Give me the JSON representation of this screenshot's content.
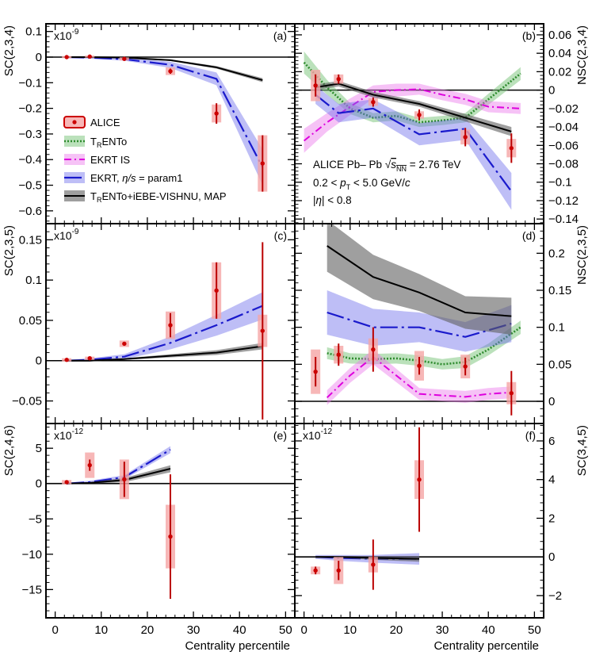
{
  "figure": {
    "xlabel": "Centrality percentile",
    "x_ticks": [
      0,
      10,
      20,
      30,
      40,
      50
    ],
    "xlim": [
      -2,
      52
    ],
    "annotation": {
      "line1_prefix": "ALICE Pb– Pb ",
      "line1_sqrt": "√",
      "line1_s": "s",
      "line1_sub": "NN",
      "line1_suffix": " = 2.76 TeV",
      "line2_a": "0.2 < ",
      "line2_p": "p",
      "line2_T": "T",
      "line2_b": " < 5.0 GeV/",
      "line2_c": "c",
      "line3_a": "|",
      "line3_eta": "η",
      "line3_b": "| < 0.8"
    },
    "legend": [
      {
        "key": "alice",
        "label": "ALICE",
        "color": "#cc0000"
      },
      {
        "key": "trento",
        "label_pre": "T",
        "label_sub": "R",
        "label_post": "ENTo",
        "color": "#2e8b2e"
      },
      {
        "key": "ekrt_is",
        "label": "EKRT IS",
        "color": "#dd00dd"
      },
      {
        "key": "ekrt",
        "label_pre": "EKRT, ",
        "label_eta": "η/s",
        "label_post": " = param1",
        "color": "#1a1acc"
      },
      {
        "key": "vishnu",
        "label_pre": "T",
        "label_sub": "R",
        "label_post": "ENTo+iEBE-VISHNU, MAP",
        "color": "#000000"
      }
    ]
  },
  "chart_data": [
    {
      "panel": "a",
      "type": "scatter",
      "tag": "(a)",
      "ylabel": "SC(2,3,4)",
      "axis_side": "left",
      "multiplier": {
        "base": "x10",
        "exp": "-9"
      },
      "ylim": [
        -0.65,
        0.13
      ],
      "y_ticks": [
        0.1,
        0,
        -0.1,
        -0.2,
        -0.3,
        -0.4,
        -0.5,
        -0.6
      ],
      "y_tick_labels": [
        "0.1",
        "0",
        "−0.1",
        "−0.2",
        "−0.3",
        "−0.4",
        "−0.5",
        "−0.6"
      ],
      "zero_line": 0,
      "series": [
        {
          "name": "ALICE",
          "kind": "data",
          "x": [
            2.5,
            7.5,
            15,
            25,
            35,
            45
          ],
          "y": [
            0.0,
            0.002,
            -0.007,
            -0.055,
            -0.22,
            -0.415
          ],
          "stat": [
            0.003,
            0.003,
            0.005,
            0.01,
            0.04,
            0.11
          ],
          "sys": [
            0.004,
            0.004,
            0.006,
            0.015,
            0.035,
            0.11
          ]
        },
        {
          "name": "EKRT, eta/s = param1",
          "kind": "ekrt",
          "x": [
            2.5,
            7.5,
            15,
            25,
            35,
            45
          ],
          "y": [
            0.0,
            -0.002,
            -0.008,
            -0.03,
            -0.085,
            -0.43
          ],
          "band": [
            0.003,
            0.004,
            0.006,
            0.012,
            0.025,
            0.07
          ]
        },
        {
          "name": "TRENTo+iEBE-VISHNU, MAP",
          "kind": "vishnu",
          "x": [
            2.5,
            7.5,
            15,
            25,
            35,
            45
          ],
          "y": [
            0.0,
            0.0,
            -0.002,
            -0.012,
            -0.04,
            -0.09
          ],
          "band": [
            0.001,
            0.001,
            0.002,
            0.003,
            0.005,
            0.008
          ]
        }
      ]
    },
    {
      "panel": "b",
      "type": "scatter",
      "tag": "(b)",
      "ylabel": "NSC(2,3,4)",
      "axis_side": "right",
      "ylim": [
        -0.145,
        0.072
      ],
      "y_ticks": [
        0.06,
        0.04,
        0.02,
        0,
        -0.02,
        -0.04,
        -0.06,
        -0.08,
        -0.1,
        -0.12,
        -0.14
      ],
      "y_tick_labels": [
        "0.06",
        "0.04",
        "0.02",
        "0",
        "−0.02",
        "−0.04",
        "−0.06",
        "−0.08",
        "−0.1",
        "−0.12",
        "−0.14"
      ],
      "zero_line": 0,
      "series": [
        {
          "name": "ALICE",
          "kind": "data",
          "x": [
            2.5,
            7.5,
            15,
            25,
            35,
            45
          ],
          "y": [
            0.005,
            0.012,
            -0.013,
            -0.027,
            -0.051,
            -0.063
          ],
          "stat": [
            0.012,
            0.005,
            0.005,
            0.006,
            0.01,
            0.016
          ],
          "sys": [
            0.017,
            0.005,
            0.004,
            0.004,
            0.008,
            0.01
          ]
        },
        {
          "name": "TRENTo",
          "kind": "trento",
          "x": [
            0,
            5,
            10,
            15,
            20,
            25,
            30,
            35,
            40,
            47
          ],
          "y": [
            0.03,
            0.003,
            -0.02,
            -0.03,
            -0.028,
            -0.035,
            -0.033,
            -0.03,
            -0.01,
            0.018
          ],
          "band": [
            0.012,
            0.008,
            0.006,
            0.005,
            0.005,
            0.005,
            0.005,
            0.005,
            0.006,
            0.007
          ]
        },
        {
          "name": "EKRT IS",
          "kind": "ekrt_is",
          "x": [
            0,
            5,
            10,
            15,
            20,
            25,
            30,
            35,
            40,
            47
          ],
          "y": [
            -0.055,
            -0.035,
            -0.018,
            -0.002,
            0.0,
            0.001,
            -0.005,
            -0.01,
            -0.018,
            -0.02
          ],
          "band": [
            0.013,
            0.01,
            0.009,
            0.007,
            0.007,
            0.006,
            0.006,
            0.006,
            0.006,
            0.006
          ]
        },
        {
          "name": "EKRT, eta/s = param1",
          "kind": "ekrt",
          "x": [
            2.5,
            7.5,
            15,
            25,
            35,
            45
          ],
          "y": [
            -0.005,
            -0.025,
            -0.02,
            -0.048,
            -0.042,
            -0.11
          ],
          "band": [
            0.01,
            0.01,
            0.01,
            0.012,
            0.012,
            0.02
          ]
        },
        {
          "name": "TRENTo+iEBE-VISHNU, MAP",
          "kind": "vishnu",
          "x": [
            2.5,
            7.5,
            15,
            25,
            35,
            45
          ],
          "y": [
            0.003,
            0.007,
            -0.005,
            -0.015,
            -0.03,
            -0.045
          ],
          "band": [
            0.003,
            0.003,
            0.003,
            0.003,
            0.004,
            0.005
          ]
        }
      ]
    },
    {
      "panel": "c",
      "type": "scatter",
      "tag": "(c)",
      "ylabel": "SC(2,3,5)",
      "axis_side": "left",
      "multiplier": {
        "base": "x10",
        "exp": "-9"
      },
      "ylim": [
        -0.078,
        0.17
      ],
      "y_ticks": [
        0.15,
        0.1,
        0.05,
        0,
        -0.05
      ],
      "y_tick_labels": [
        "0.15",
        "0.1",
        "0.05",
        "0",
        "−0.05"
      ],
      "zero_line": 0,
      "series": [
        {
          "name": "ALICE",
          "kind": "data",
          "x": [
            2.5,
            7.5,
            15,
            25,
            35,
            45
          ],
          "y": [
            0.001,
            0.003,
            0.021,
            0.044,
            0.087,
            0.037
          ],
          "stat": [
            0.001,
            0.001,
            0.002,
            0.015,
            0.035,
            0.11
          ],
          "sys": [
            0.002,
            0.002,
            0.004,
            0.017,
            0.035,
            0.02
          ]
        },
        {
          "name": "EKRT, eta/s = param1",
          "kind": "ekrt",
          "x": [
            2.5,
            7.5,
            15,
            25,
            35,
            45
          ],
          "y": [
            0.0,
            0.001,
            0.005,
            0.022,
            0.044,
            0.068
          ],
          "band": [
            0.001,
            0.002,
            0.003,
            0.008,
            0.013,
            0.017
          ]
        },
        {
          "name": "TRENTo+iEBE-VISHNU, MAP",
          "kind": "vishnu",
          "x": [
            2.5,
            7.5,
            15,
            25,
            35,
            45
          ],
          "y": [
            0.0,
            0.0,
            0.002,
            0.006,
            0.01,
            0.018
          ],
          "band": [
            0.001,
            0.001,
            0.001,
            0.002,
            0.003,
            0.004
          ]
        }
      ]
    },
    {
      "panel": "d",
      "type": "scatter",
      "tag": "(d)",
      "ylabel": "NSC(2,3,5)",
      "axis_side": "right",
      "ylim": [
        -0.03,
        0.24
      ],
      "y_ticks": [
        0.2,
        0.15,
        0.1,
        0.05,
        0
      ],
      "y_tick_labels": [
        "0.2",
        "0.15",
        "0.1",
        "0.05",
        "0"
      ],
      "zero_line": 0,
      "series": [
        {
          "name": "ALICE",
          "kind": "data",
          "x": [
            2.5,
            7.5,
            15,
            25,
            35,
            45
          ],
          "y": [
            0.04,
            0.063,
            0.07,
            0.048,
            0.047,
            0.011
          ],
          "stat": [
            0.02,
            0.015,
            0.03,
            0.012,
            0.012,
            0.03
          ],
          "sys": [
            0.03,
            0.012,
            0.015,
            0.02,
            0.016,
            0.015
          ]
        },
        {
          "name": "TRENTo",
          "kind": "trento",
          "x": [
            5,
            10,
            15,
            20,
            25,
            30,
            35,
            40,
            47
          ],
          "y": [
            0.065,
            0.058,
            0.057,
            0.058,
            0.055,
            0.05,
            0.053,
            0.07,
            0.1
          ],
          "band": [
            0.008,
            0.007,
            0.007,
            0.007,
            0.007,
            0.007,
            0.008,
            0.008,
            0.009
          ]
        },
        {
          "name": "EKRT IS",
          "kind": "ekrt_is",
          "x": [
            5,
            10,
            15,
            20,
            25,
            30,
            35,
            40,
            45
          ],
          "y": [
            0.005,
            0.035,
            0.06,
            0.035,
            0.01,
            0.008,
            0.006,
            0.01,
            0.012
          ],
          "band": [
            0.01,
            0.01,
            0.01,
            0.009,
            0.008,
            0.008,
            0.008,
            0.008,
            0.008
          ]
        },
        {
          "name": "EKRT, eta/s = param1",
          "kind": "ekrt",
          "x": [
            5,
            15,
            25,
            35,
            45
          ],
          "y": [
            0.12,
            0.1,
            0.1,
            0.087,
            0.105
          ],
          "band": [
            0.03,
            0.025,
            0.02,
            0.02,
            0.025
          ]
        },
        {
          "name": "TRENTo+iEBE-VISHNU, MAP",
          "kind": "vishnu",
          "x": [
            5,
            15,
            25,
            35,
            45
          ],
          "y": [
            0.21,
            0.168,
            0.147,
            0.12,
            0.115
          ],
          "band": [
            0.035,
            0.03,
            0.025,
            0.022,
            0.025
          ]
        }
      ]
    },
    {
      "panel": "e",
      "type": "scatter",
      "tag": "(e)",
      "ylabel": "SC(2,4,6)",
      "axis_side": "left",
      "multiplier": {
        "base": "x10",
        "exp": "-12"
      },
      "ylim": [
        -19,
        8.5
      ],
      "y_ticks": [
        5,
        0,
        -5,
        -10,
        -15
      ],
      "y_tick_labels": [
        "5",
        "0",
        "−5",
        "−10",
        "−15"
      ],
      "zero_line": 0,
      "series": [
        {
          "name": "ALICE",
          "kind": "data",
          "x": [
            2.5,
            7.5,
            15,
            25
          ],
          "y": [
            0.2,
            2.6,
            0.6,
            -7.5
          ],
          "stat": [
            0.2,
            0.8,
            2.5,
            8.8
          ],
          "sys": [
            0.3,
            1.8,
            2.8,
            4.5
          ]
        },
        {
          "name": "EKRT, eta/s = param1",
          "kind": "ekrt",
          "x": [
            2.5,
            7.5,
            15,
            25
          ],
          "y": [
            0.0,
            0.2,
            0.9,
            4.8
          ],
          "band": [
            0.1,
            0.2,
            0.3,
            0.5
          ]
        },
        {
          "name": "TRENTo+iEBE-VISHNU, MAP",
          "kind": "vishnu",
          "x": [
            2.5,
            7.5,
            15,
            25
          ],
          "y": [
            0.0,
            0.1,
            0.5,
            2.1
          ],
          "band": [
            0.1,
            0.1,
            0.3,
            0.5
          ]
        }
      ]
    },
    {
      "panel": "f",
      "type": "scatter",
      "tag": "(f)",
      "ylabel": "SC(3,4,5)",
      "axis_side": "right",
      "multiplier": {
        "base": "x10",
        "exp": "-12"
      },
      "ylim": [
        -3.15,
        6.9
      ],
      "y_ticks": [
        6,
        4,
        2,
        0,
        -2
      ],
      "y_tick_labels": [
        "6",
        "4",
        "2",
        "0",
        "−2"
      ],
      "zero_line": 0,
      "series": [
        {
          "name": "ALICE",
          "kind": "data",
          "x": [
            2.5,
            7.5,
            15,
            25
          ],
          "y": [
            -0.7,
            -0.7,
            -0.4,
            4.0
          ],
          "stat": [
            0.2,
            0.5,
            1.3,
            2.7
          ],
          "sys": [
            0.2,
            0.7,
            0.4,
            1.0
          ]
        },
        {
          "name": "EKRT, eta/s = param1",
          "kind": "ekrt",
          "x": [
            2.5,
            7.5,
            15,
            25
          ],
          "y": [
            0.0,
            -0.05,
            -0.1,
            -0.1
          ],
          "band": [
            0.1,
            0.15,
            0.2,
            0.3
          ]
        },
        {
          "name": "TRENTo+iEBE-VISHNU, MAP",
          "kind": "vishnu",
          "x": [
            2.5,
            7.5,
            15,
            25
          ],
          "y": [
            0.0,
            0.0,
            -0.05,
            -0.1
          ],
          "band": [
            0.05,
            0.05,
            0.1,
            0.15
          ]
        }
      ]
    }
  ]
}
